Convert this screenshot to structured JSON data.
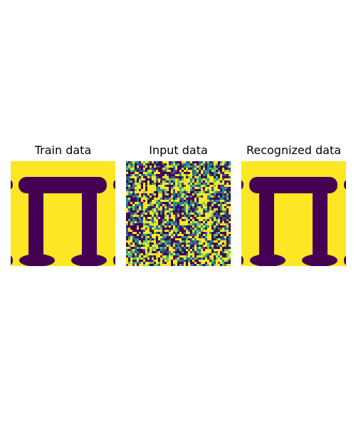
{
  "figure": {
    "panels": [
      {
        "title": "Train data",
        "image": "clean-pi-pattern"
      },
      {
        "title": "Input data",
        "image": "noisy-pi-pattern"
      },
      {
        "title": "Recognized data",
        "image": "recovered-pi-pattern"
      }
    ],
    "colors": {
      "foreground": "#440154",
      "background": "#fde725",
      "noise_mid_1": "#21918c",
      "noise_mid_2": "#3b528b",
      "noise_mid_3": "#5ec962"
    }
  }
}
